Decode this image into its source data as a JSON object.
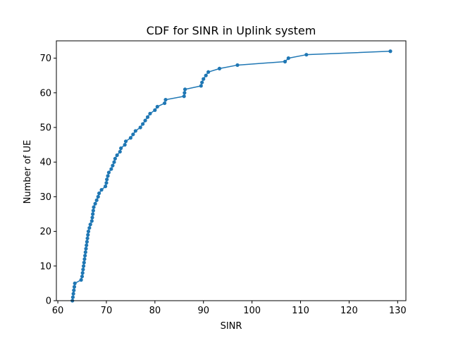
{
  "chart_data": {
    "type": "line",
    "title": "CDF for SINR in Uplink system",
    "xlabel": "SINR",
    "ylabel": "Number of UE",
    "xlim": [
      59.7,
      131.7
    ],
    "ylim": [
      0,
      75
    ],
    "xticks": [
      60,
      70,
      80,
      90,
      100,
      110,
      120,
      130
    ],
    "yticks": [
      0,
      10,
      20,
      30,
      40,
      50,
      60,
      70
    ],
    "grid": false,
    "legend": "none",
    "series": [
      {
        "color": "#1f77b4",
        "marker": "circle",
        "x": [
          63.0,
          63.1,
          63.2,
          63.3,
          63.4,
          63.5,
          64.8,
          65.0,
          65.1,
          65.2,
          65.3,
          65.4,
          65.5,
          65.6,
          65.7,
          65.8,
          65.9,
          66.0,
          66.1,
          66.2,
          66.3,
          66.5,
          66.7,
          67.0,
          67.1,
          67.2,
          67.3,
          67.4,
          67.7,
          68.0,
          68.3,
          68.5,
          69.0,
          69.8,
          70.0,
          70.1,
          70.3,
          70.5,
          71.0,
          71.3,
          71.6,
          71.8,
          72.2,
          72.8,
          73.0,
          73.8,
          74.0,
          75.0,
          75.5,
          76.0,
          77.0,
          77.5,
          78.0,
          78.5,
          79.0,
          80.0,
          80.5,
          82.0,
          82.2,
          86.0,
          86.1,
          86.2,
          89.5,
          89.7,
          90.0,
          90.5,
          91.0,
          93.3,
          97.0,
          106.8,
          107.5,
          111.2,
          128.5
        ],
        "y": [
          0,
          1,
          2,
          3,
          4,
          5,
          6,
          7,
          8,
          9,
          10,
          11,
          12,
          13,
          14,
          15,
          16,
          17,
          18,
          19,
          20,
          21,
          22,
          23,
          24,
          25,
          26,
          27,
          28,
          29,
          30,
          31,
          32,
          33,
          34,
          35,
          36,
          37,
          38,
          39,
          40,
          41,
          42,
          43,
          44,
          45,
          46,
          47,
          48,
          49,
          50,
          51,
          52,
          53,
          54,
          55,
          56,
          57,
          58,
          59,
          60,
          61,
          62,
          63,
          64,
          65,
          66,
          67,
          68,
          69,
          70,
          71,
          72
        ]
      }
    ]
  }
}
